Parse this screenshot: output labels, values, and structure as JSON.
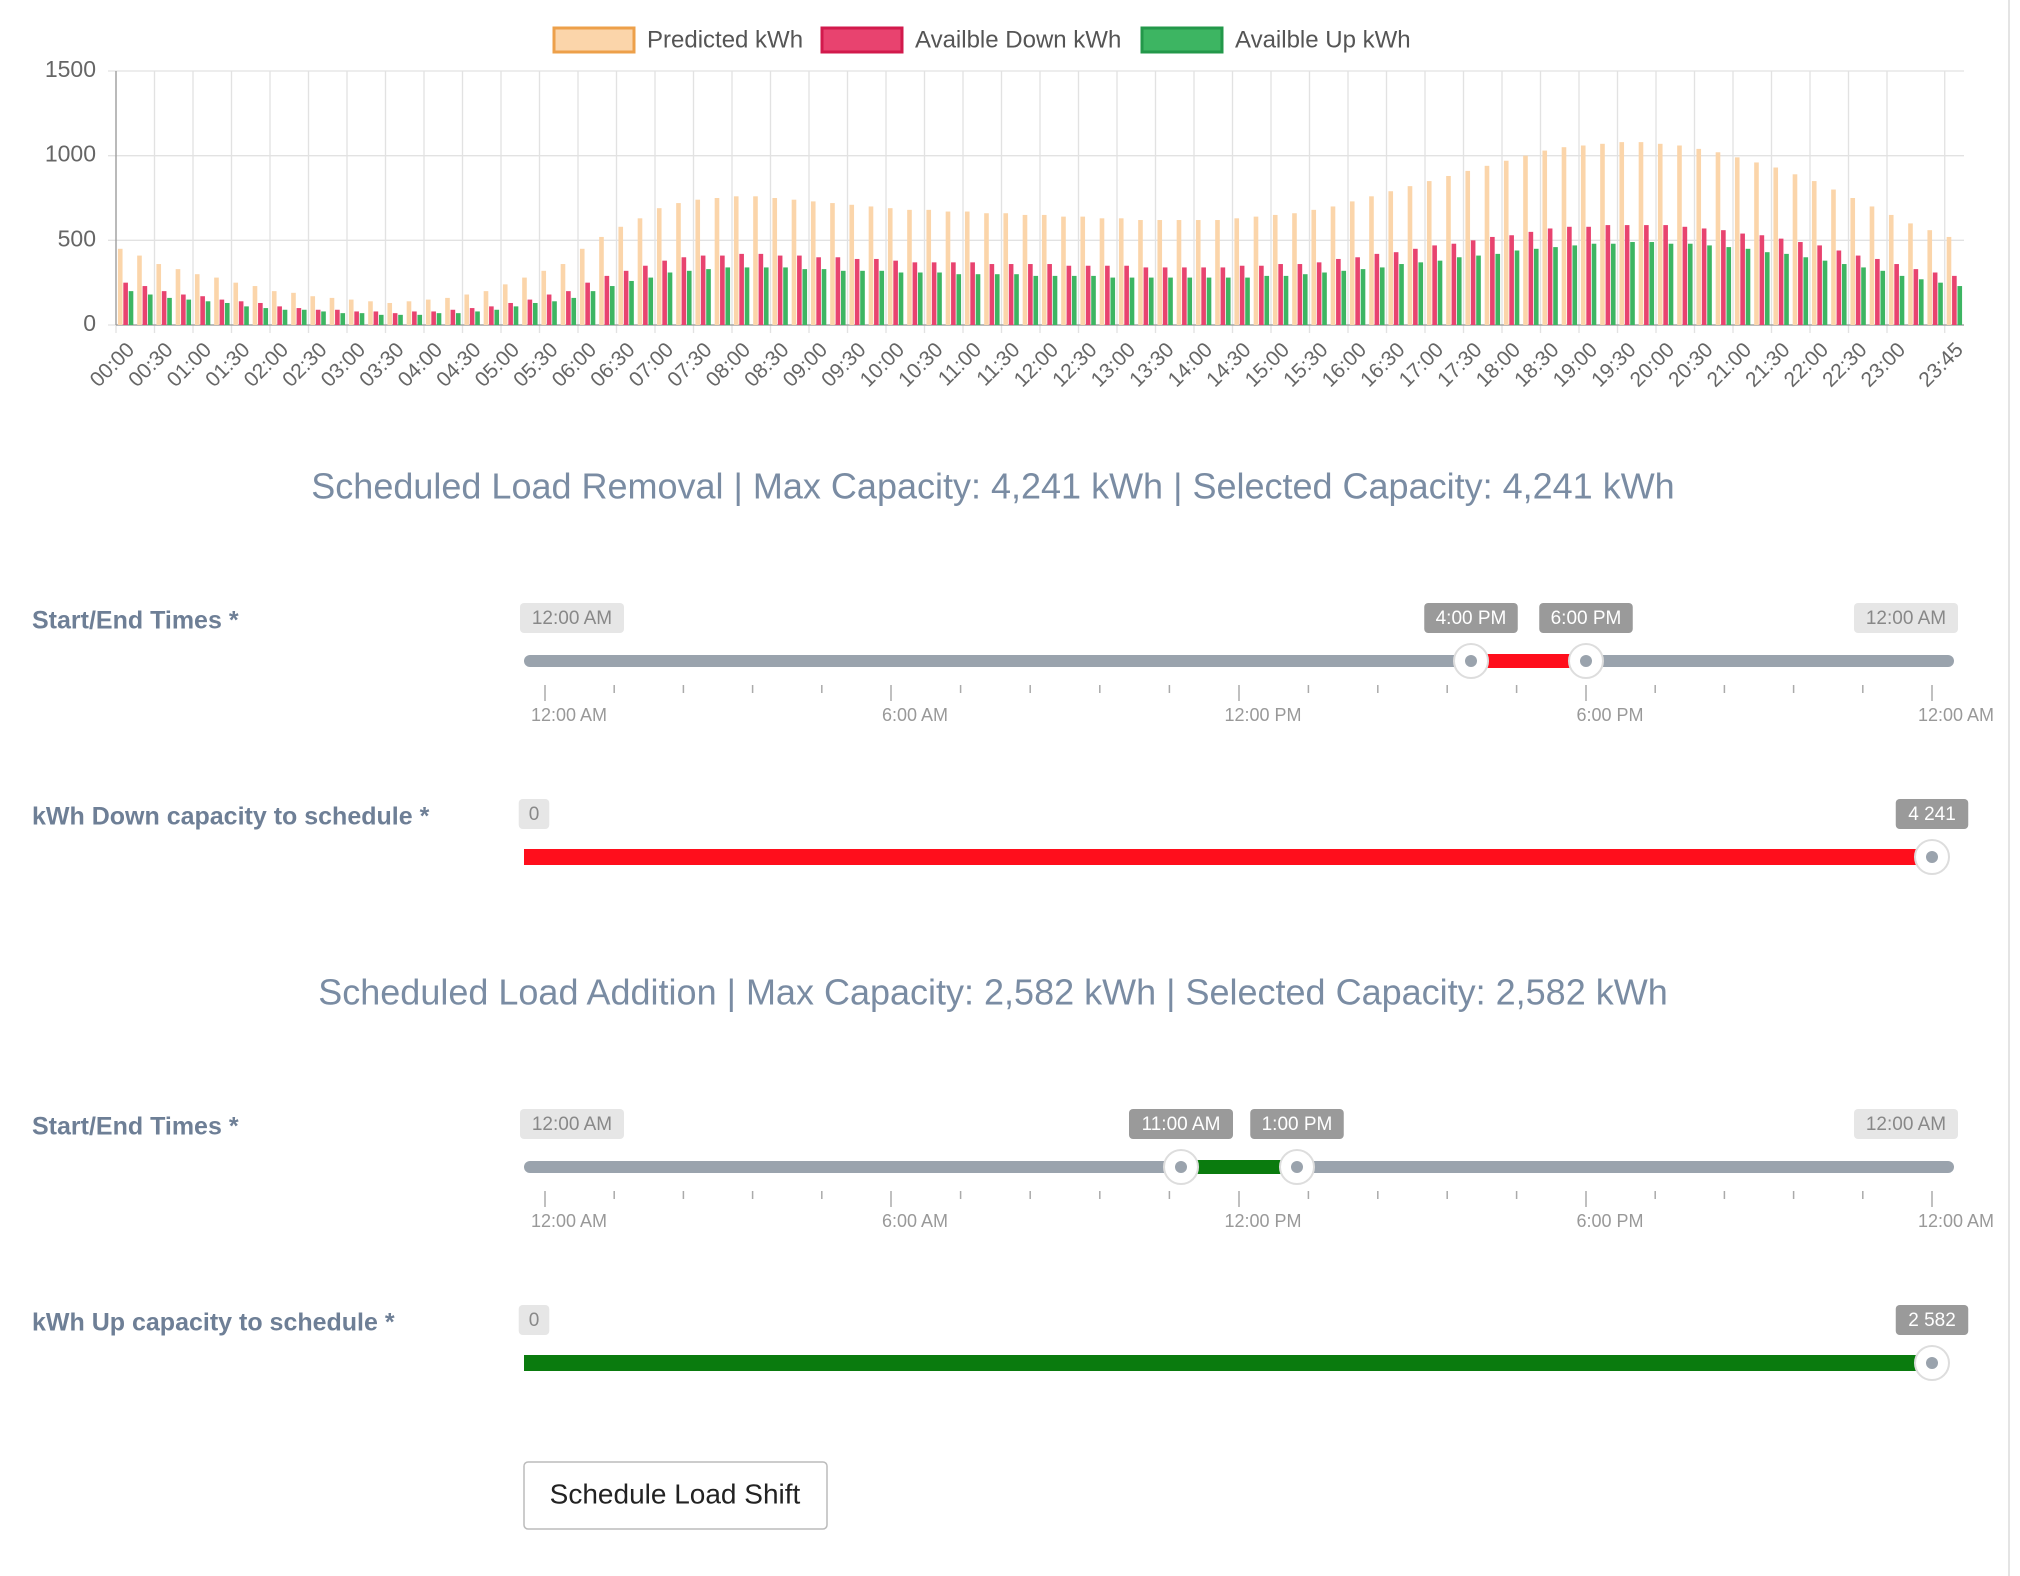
{
  "chart_data": {
    "type": "bar",
    "categories": [
      "00:00",
      null,
      "00:30",
      null,
      "01:00",
      null,
      "01:30",
      null,
      "02:00",
      null,
      "02:30",
      null,
      "03:00",
      null,
      "03:30",
      null,
      "04:00",
      null,
      "04:30",
      null,
      "05:00",
      null,
      "05:30",
      null,
      "06:00",
      null,
      "06:30",
      null,
      "07:00",
      null,
      "07:30",
      null,
      "08:00",
      null,
      "08:30",
      null,
      "09:00",
      null,
      "09:30",
      null,
      "10:00",
      null,
      "10:30",
      null,
      "11:00",
      null,
      "11:30",
      null,
      "12:00",
      null,
      "12:30",
      null,
      "13:00",
      null,
      "13:30",
      null,
      "14:00",
      null,
      "14:30",
      null,
      "15:00",
      null,
      "15:30",
      null,
      "16:00",
      null,
      "16:30",
      null,
      "17:00",
      null,
      "17:30",
      null,
      "18:00",
      null,
      "18:30",
      null,
      "19:00",
      null,
      "19:30",
      null,
      "20:00",
      null,
      "20:30",
      null,
      "21:00",
      null,
      "21:30",
      null,
      "22:00",
      null,
      "22:30",
      null,
      "23:00",
      null,
      null,
      "23:45"
    ],
    "series": [
      {
        "name": "Predicted kWh",
        "color": "#fbd5aa",
        "border": "#eda04a",
        "values": [
          450,
          410,
          360,
          330,
          300,
          280,
          250,
          230,
          200,
          190,
          170,
          160,
          150,
          140,
          130,
          140,
          150,
          160,
          180,
          200,
          240,
          280,
          320,
          360,
          450,
          520,
          580,
          630,
          690,
          720,
          740,
          750,
          760,
          760,
          750,
          740,
          730,
          720,
          710,
          700,
          690,
          680,
          680,
          670,
          670,
          660,
          660,
          650,
          650,
          640,
          640,
          630,
          630,
          620,
          620,
          620,
          620,
          620,
          630,
          640,
          650,
          660,
          680,
          700,
          730,
          760,
          790,
          820,
          850,
          880,
          910,
          940,
          970,
          1000,
          1030,
          1050,
          1060,
          1070,
          1080,
          1080,
          1070,
          1060,
          1040,
          1020,
          990,
          960,
          930,
          890,
          850,
          800,
          750,
          700,
          650,
          600,
          560,
          520
        ]
      },
      {
        "name": "Availble Down kWh",
        "color": "#e8436f",
        "border": "#d21a4c",
        "values": [
          250,
          230,
          200,
          180,
          170,
          150,
          140,
          130,
          110,
          100,
          90,
          90,
          80,
          80,
          70,
          80,
          80,
          90,
          100,
          110,
          130,
          150,
          180,
          200,
          250,
          290,
          320,
          350,
          380,
          400,
          410,
          410,
          420,
          420,
          410,
          410,
          400,
          400,
          390,
          390,
          380,
          370,
          370,
          370,
          370,
          360,
          360,
          360,
          360,
          350,
          350,
          350,
          350,
          340,
          340,
          340,
          340,
          340,
          350,
          350,
          360,
          360,
          370,
          390,
          400,
          420,
          430,
          450,
          470,
          480,
          500,
          520,
          530,
          550,
          570,
          580,
          580,
          590,
          590,
          590,
          590,
          580,
          570,
          560,
          540,
          530,
          510,
          490,
          470,
          440,
          410,
          390,
          360,
          330,
          310,
          290
        ]
      },
      {
        "name": "Availble Up kWh",
        "color": "#3db562",
        "border": "#23984a",
        "values": [
          200,
          180,
          160,
          150,
          140,
          130,
          110,
          100,
          90,
          90,
          80,
          70,
          70,
          60,
          60,
          60,
          70,
          70,
          80,
          90,
          110,
          130,
          140,
          160,
          200,
          230,
          260,
          280,
          310,
          320,
          330,
          340,
          340,
          340,
          340,
          330,
          330,
          320,
          320,
          320,
          310,
          310,
          310,
          300,
          300,
          300,
          300,
          290,
          290,
          290,
          290,
          280,
          280,
          280,
          280,
          280,
          280,
          280,
          280,
          290,
          290,
          300,
          310,
          320,
          330,
          340,
          360,
          370,
          380,
          400,
          410,
          420,
          440,
          450,
          460,
          470,
          480,
          480,
          490,
          490,
          480,
          480,
          470,
          460,
          450,
          430,
          420,
          400,
          380,
          360,
          340,
          320,
          290,
          270,
          250,
          230
        ]
      }
    ],
    "ylim": [
      0,
      1500
    ],
    "yticks": [
      0,
      500,
      1000,
      1500
    ],
    "grid": true,
    "legend": "top"
  },
  "sections": [
    {
      "heading": "Scheduled Load Removal | Max Capacity: 4,241 kWh | Selected Capacity: 4,241 kWh",
      "time_label": "Start/End Times *",
      "time_min": "12:00 AM",
      "time_from": "4:00 PM",
      "time_to": "6:00 PM",
      "time_max": "12:00 AM",
      "scale": [
        "12:00 AM",
        "6:00 AM",
        "12:00 PM",
        "6:00 PM",
        "12:00 AM"
      ],
      "capacity_label": "kWh Down capacity to schedule *",
      "capacity_min": "0",
      "capacity_max": "4 241"
    },
    {
      "heading": "Scheduled Load Addition | Max Capacity: 2,582 kWh | Selected Capacity: 2,582 kWh",
      "time_label": "Start/End Times *",
      "time_min": "12:00 AM",
      "time_from": "11:00 AM",
      "time_to": "1:00 PM",
      "time_max": "12:00 AM",
      "scale": [
        "12:00 AM",
        "6:00 AM",
        "12:00 PM",
        "6:00 PM",
        "12:00 AM"
      ],
      "capacity_label": "kWh Up capacity to schedule *",
      "capacity_min": "0",
      "capacity_max": "2 582"
    }
  ],
  "button": "Schedule Load Shift"
}
